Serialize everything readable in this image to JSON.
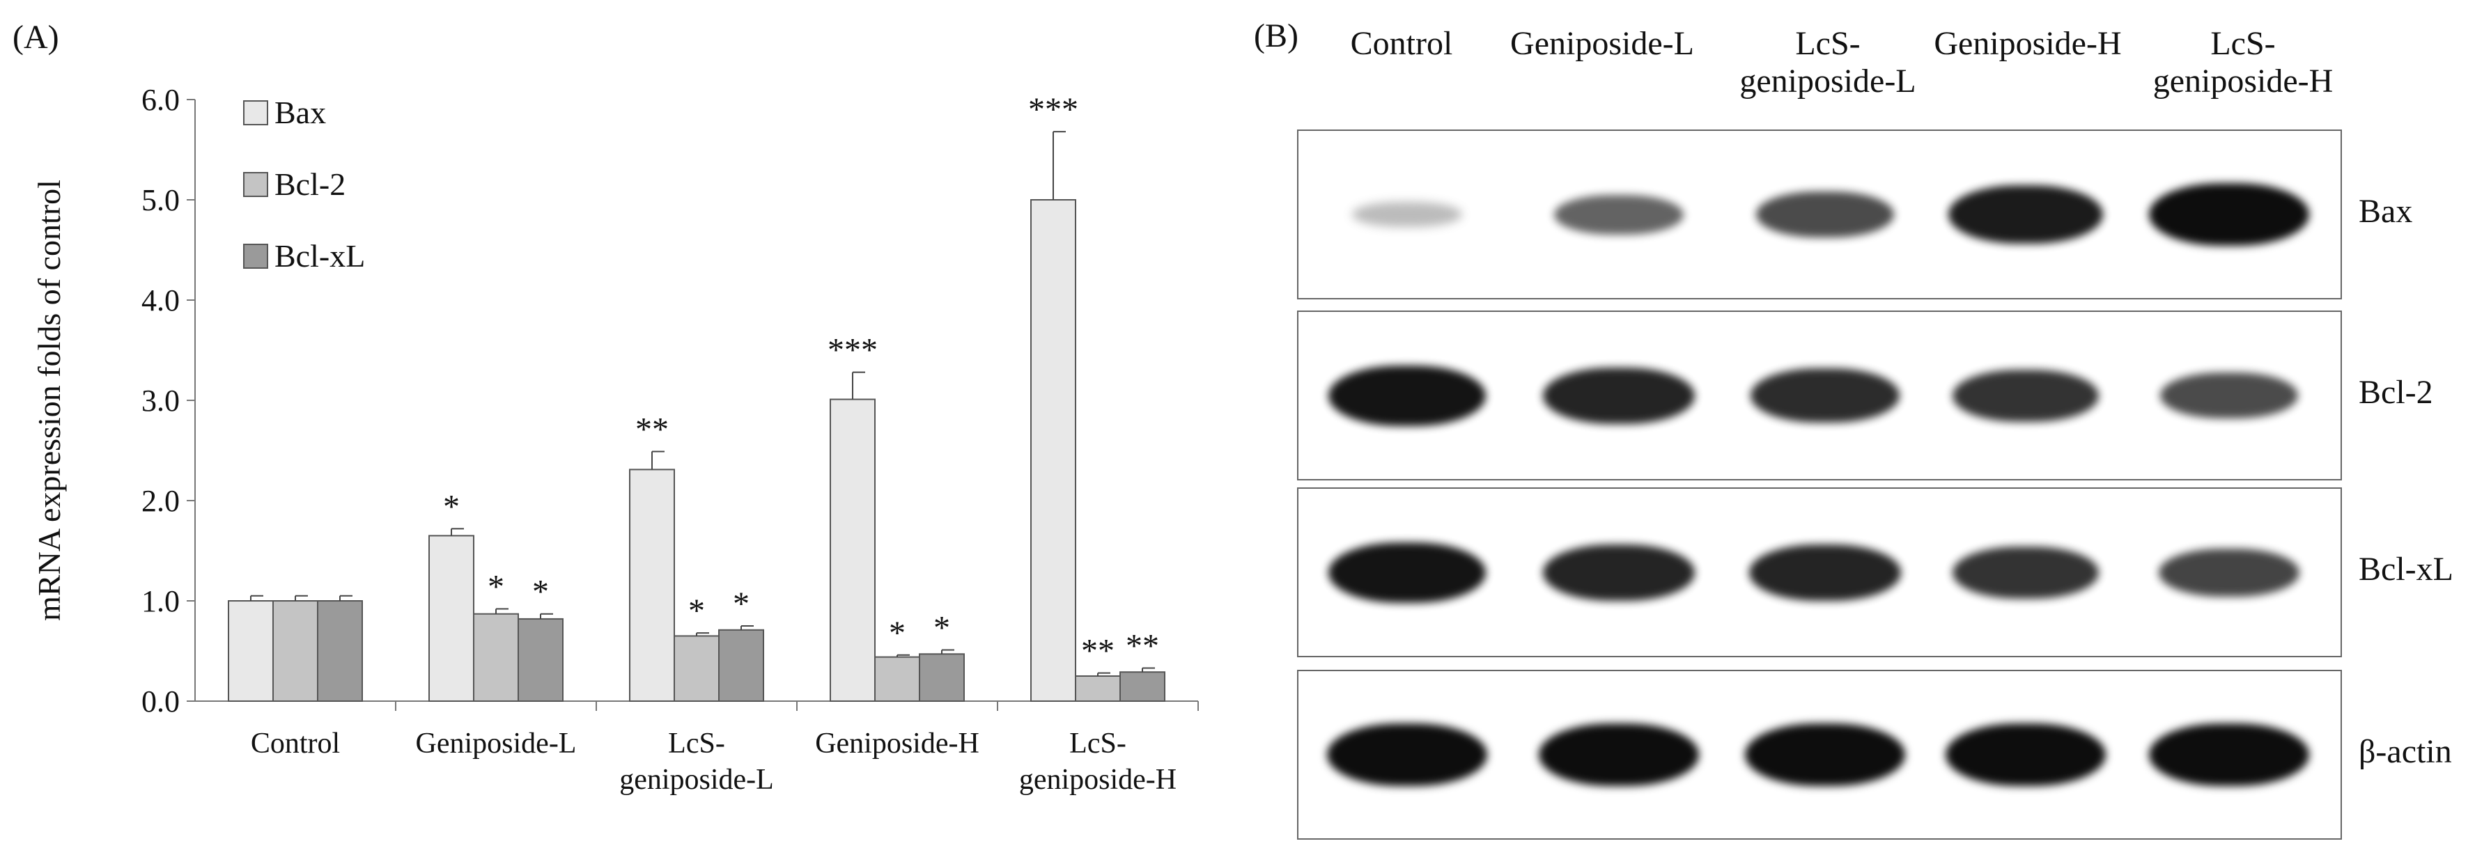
{
  "panel_a_label": "(A)",
  "panel_b_label": "(B)",
  "chart_data": {
    "type": "bar",
    "title": "",
    "xlabel": "",
    "ylabel": "mRNA expression folds of control",
    "ylim": [
      0,
      6
    ],
    "yticks": [
      "0.0",
      "1.0",
      "2.0",
      "3.0",
      "4.0",
      "5.0",
      "6.0"
    ],
    "categories": [
      "Control",
      "Geniposide-L",
      "LcS-\ngeniposide-L",
      "Geniposide-H",
      "LcS-\ngeniposide-H"
    ],
    "legend_position": "top-left",
    "grid": false,
    "series": [
      {
        "name": "Bax",
        "color": "#e8e8e8",
        "values": [
          1.0,
          1.65,
          2.31,
          3.01,
          5.0
        ],
        "errors": [
          0.05,
          0.07,
          0.18,
          0.27,
          0.68
        ],
        "significance": [
          "",
          "*",
          "**",
          "***",
          "***"
        ]
      },
      {
        "name": "Bcl-2",
        "color": "#c4c4c4",
        "values": [
          1.0,
          0.87,
          0.65,
          0.44,
          0.25
        ],
        "errors": [
          0.05,
          0.05,
          0.03,
          0.02,
          0.03
        ],
        "significance": [
          "",
          "*",
          "*",
          "*",
          "**"
        ]
      },
      {
        "name": "Bcl-xL",
        "color": "#9a9a9a",
        "values": [
          1.0,
          0.82,
          0.71,
          0.47,
          0.29
        ],
        "errors": [
          0.05,
          0.05,
          0.04,
          0.04,
          0.04
        ],
        "significance": [
          "",
          "*",
          "*",
          "*",
          "**"
        ]
      }
    ]
  },
  "blot": {
    "lane_headers": [
      "Control",
      "Geniposide-L",
      "LcS-\ngeniposide-L",
      "Geniposide-H",
      "LcS-\ngeniposide-H"
    ],
    "rows": [
      {
        "label": "Bax",
        "intensity": [
          0.1,
          0.45,
          0.6,
          0.9,
          1.0
        ]
      },
      {
        "label": "Bcl-2",
        "intensity": [
          0.95,
          0.85,
          0.8,
          0.75,
          0.6
        ]
      },
      {
        "label": "Bcl-xL",
        "intensity": [
          0.95,
          0.85,
          0.85,
          0.75,
          0.65
        ]
      },
      {
        "label": "β-actin",
        "intensity": [
          1.0,
          1.0,
          1.0,
          1.0,
          1.0
        ]
      }
    ]
  }
}
